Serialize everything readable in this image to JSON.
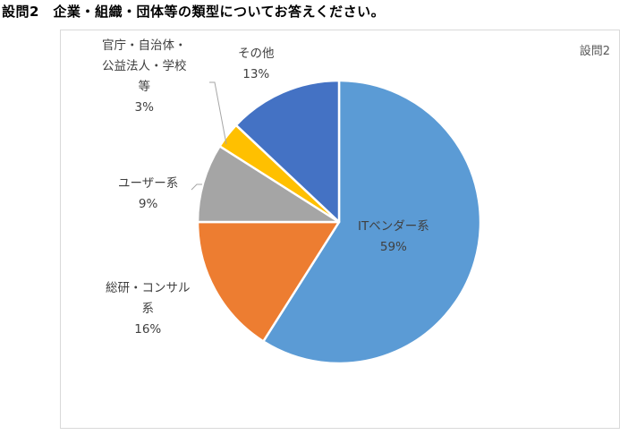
{
  "question_title": "設問2　企業・組織・団体等の類型についてお答えください。",
  "chart_data": {
    "type": "pie",
    "title": "設問2",
    "slices": [
      {
        "label_lines": [
          "ITベンダー系"
        ],
        "value": 59,
        "value_text": "59%",
        "color": "#5b9bd5"
      },
      {
        "label_lines": [
          "総研・コンサル",
          "系"
        ],
        "value": 16,
        "value_text": "16%",
        "color": "#ed7d31"
      },
      {
        "label_lines": [
          "ユーザー系"
        ],
        "value": 9,
        "value_text": "9%",
        "color": "#a5a5a5"
      },
      {
        "label_lines": [
          "官庁・自治体・",
          "公益法人・学校",
          "等"
        ],
        "value": 3,
        "value_text": "3%",
        "color": "#ffc000"
      },
      {
        "label_lines": [
          "その他"
        ],
        "value": 13,
        "value_text": "13%",
        "color": "#4472c4"
      }
    ],
    "start_angle_deg": 0,
    "direction": "clockwise",
    "legend": "none"
  }
}
